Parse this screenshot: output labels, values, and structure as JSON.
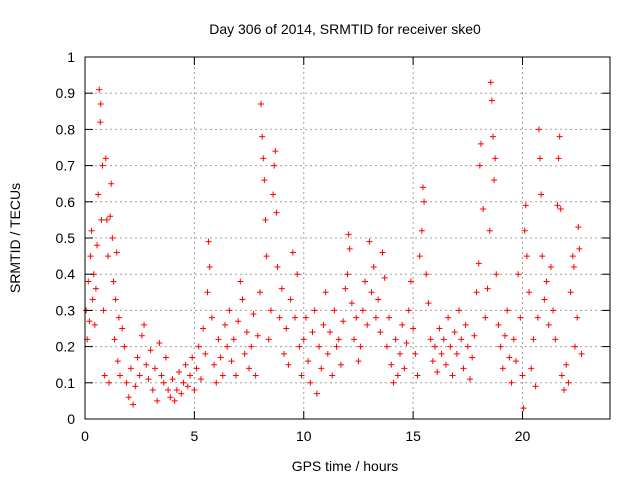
{
  "chart_data": {
    "type": "scatter",
    "title": "Day 306 of 2014, SRMTID for receiver ske0",
    "xlabel": "GPS time / hours",
    "ylabel": "SRMTID / TECUs",
    "xlim": [
      0,
      24
    ],
    "ylim": [
      0,
      1
    ],
    "xticks": [
      0,
      5,
      10,
      15,
      20
    ],
    "xtick_labels": [
      "0",
      "5",
      "10",
      "15",
      "20"
    ],
    "yticks": [
      0,
      0.1,
      0.2,
      0.3,
      0.4,
      0.5,
      0.6,
      0.7,
      0.8,
      0.9,
      1
    ],
    "ytick_labels": [
      "0",
      "0.1",
      "0.2",
      "0.3",
      "0.4",
      "0.5",
      "0.6",
      "0.7",
      "0.8",
      "0.9",
      "1"
    ],
    "grid": true,
    "marker": "+",
    "color": "#ff0000",
    "series": [
      {
        "name": "SRMTID",
        "points": [
          [
            0.05,
            0.3
          ],
          [
            0.1,
            0.22
          ],
          [
            0.15,
            0.38
          ],
          [
            0.2,
            0.27
          ],
          [
            0.25,
            0.45
          ],
          [
            0.3,
            0.52
          ],
          [
            0.35,
            0.33
          ],
          [
            0.4,
            0.4
          ],
          [
            0.45,
            0.26
          ],
          [
            0.5,
            0.36
          ],
          [
            0.55,
            0.48
          ],
          [
            0.6,
            0.62
          ],
          [
            0.65,
            0.91
          ],
          [
            0.7,
            0.82
          ],
          [
            0.72,
            0.87
          ],
          [
            0.75,
            0.55
          ],
          [
            0.8,
            0.7
          ],
          [
            0.85,
            0.3
          ],
          [
            0.9,
            0.12
          ],
          [
            0.95,
            0.72
          ],
          [
            1.0,
            0.55
          ],
          [
            1.05,
            0.45
          ],
          [
            1.1,
            0.1
          ],
          [
            1.15,
            0.56
          ],
          [
            1.2,
            0.65
          ],
          [
            1.25,
            0.5
          ],
          [
            1.3,
            0.38
          ],
          [
            1.35,
            0.22
          ],
          [
            1.4,
            0.33
          ],
          [
            1.45,
            0.46
          ],
          [
            1.5,
            0.16
          ],
          [
            1.55,
            0.28
          ],
          [
            1.6,
            0.12
          ],
          [
            1.7,
            0.25
          ],
          [
            1.8,
            0.2
          ],
          [
            1.9,
            0.1
          ],
          [
            2.0,
            0.06
          ],
          [
            2.1,
            0.14
          ],
          [
            2.2,
            0.04
          ],
          [
            2.3,
            0.09
          ],
          [
            2.4,
            0.17
          ],
          [
            2.5,
            0.12
          ],
          [
            2.6,
            0.23
          ],
          [
            2.7,
            0.26
          ],
          [
            2.8,
            0.15
          ],
          [
            2.9,
            0.11
          ],
          [
            3.0,
            0.19
          ],
          [
            3.1,
            0.08
          ],
          [
            3.2,
            0.14
          ],
          [
            3.3,
            0.05
          ],
          [
            3.4,
            0.21
          ],
          [
            3.5,
            0.12
          ],
          [
            3.6,
            0.1
          ],
          [
            3.7,
            0.17
          ],
          [
            3.8,
            0.08
          ],
          [
            3.9,
            0.06
          ],
          [
            4.0,
            0.11
          ],
          [
            4.1,
            0.05
          ],
          [
            4.2,
            0.08
          ],
          [
            4.3,
            0.13
          ],
          [
            4.4,
            0.07
          ],
          [
            4.5,
            0.1
          ],
          [
            4.6,
            0.15
          ],
          [
            4.7,
            0.09
          ],
          [
            4.8,
            0.12
          ],
          [
            4.9,
            0.17
          ],
          [
            5.0,
            0.08
          ],
          [
            5.1,
            0.14
          ],
          [
            5.2,
            0.2
          ],
          [
            5.3,
            0.11
          ],
          [
            5.4,
            0.25
          ],
          [
            5.5,
            0.18
          ],
          [
            5.6,
            0.35
          ],
          [
            5.65,
            0.49
          ],
          [
            5.7,
            0.42
          ],
          [
            5.8,
            0.28
          ],
          [
            5.9,
            0.15
          ],
          [
            6.0,
            0.1
          ],
          [
            6.1,
            0.22
          ],
          [
            6.2,
            0.17
          ],
          [
            6.3,
            0.12
          ],
          [
            6.4,
            0.26
          ],
          [
            6.5,
            0.2
          ],
          [
            6.6,
            0.3
          ],
          [
            6.7,
            0.16
          ],
          [
            6.8,
            0.22
          ],
          [
            6.9,
            0.12
          ],
          [
            7.0,
            0.27
          ],
          [
            7.1,
            0.38
          ],
          [
            7.2,
            0.33
          ],
          [
            7.3,
            0.18
          ],
          [
            7.4,
            0.24
          ],
          [
            7.5,
            0.14
          ],
          [
            7.6,
            0.2
          ],
          [
            7.7,
            0.29
          ],
          [
            7.8,
            0.12
          ],
          [
            7.9,
            0.23
          ],
          [
            8.0,
            0.35
          ],
          [
            8.05,
            0.87
          ],
          [
            8.1,
            0.78
          ],
          [
            8.15,
            0.72
          ],
          [
            8.2,
            0.66
          ],
          [
            8.25,
            0.55
          ],
          [
            8.3,
            0.45
          ],
          [
            8.4,
            0.22
          ],
          [
            8.5,
            0.3
          ],
          [
            8.6,
            0.62
          ],
          [
            8.65,
            0.7
          ],
          [
            8.7,
            0.74
          ],
          [
            8.75,
            0.57
          ],
          [
            8.8,
            0.42
          ],
          [
            8.9,
            0.28
          ],
          [
            9.0,
            0.36
          ],
          [
            9.1,
            0.18
          ],
          [
            9.2,
            0.25
          ],
          [
            9.3,
            0.15
          ],
          [
            9.4,
            0.33
          ],
          [
            9.5,
            0.46
          ],
          [
            9.6,
            0.28
          ],
          [
            9.7,
            0.4
          ],
          [
            9.8,
            0.2
          ],
          [
            9.9,
            0.12
          ],
          [
            10.0,
            0.22
          ],
          [
            10.1,
            0.28
          ],
          [
            10.2,
            0.16
          ],
          [
            10.3,
            0.1
          ],
          [
            10.4,
            0.24
          ],
          [
            10.5,
            0.3
          ],
          [
            10.6,
            0.07
          ],
          [
            10.7,
            0.2
          ],
          [
            10.8,
            0.14
          ],
          [
            10.9,
            0.26
          ],
          [
            11.0,
            0.35
          ],
          [
            11.1,
            0.18
          ],
          [
            11.2,
            0.24
          ],
          [
            11.3,
            0.12
          ],
          [
            11.4,
            0.3
          ],
          [
            11.5,
            0.2
          ],
          [
            11.6,
            0.22
          ],
          [
            11.7,
            0.15
          ],
          [
            11.8,
            0.27
          ],
          [
            11.9,
            0.36
          ],
          [
            12.0,
            0.4
          ],
          [
            12.05,
            0.51
          ],
          [
            12.1,
            0.47
          ],
          [
            12.2,
            0.32
          ],
          [
            12.3,
            0.22
          ],
          [
            12.4,
            0.28
          ],
          [
            12.5,
            0.16
          ],
          [
            12.6,
            0.2
          ],
          [
            12.7,
            0.3
          ],
          [
            12.8,
            0.38
          ],
          [
            12.9,
            0.26
          ],
          [
            13.0,
            0.49
          ],
          [
            13.1,
            0.35
          ],
          [
            13.2,
            0.42
          ],
          [
            13.3,
            0.28
          ],
          [
            13.4,
            0.33
          ],
          [
            13.5,
            0.24
          ],
          [
            13.6,
            0.46
          ],
          [
            13.7,
            0.39
          ],
          [
            13.8,
            0.2
          ],
          [
            13.9,
            0.28
          ],
          [
            14.0,
            0.15
          ],
          [
            14.1,
            0.1
          ],
          [
            14.2,
            0.22
          ],
          [
            14.3,
            0.12
          ],
          [
            14.4,
            0.18
          ],
          [
            14.5,
            0.26
          ],
          [
            14.6,
            0.14
          ],
          [
            14.7,
            0.21
          ],
          [
            14.8,
            0.3
          ],
          [
            14.9,
            0.38
          ],
          [
            15.0,
            0.25
          ],
          [
            15.1,
            0.18
          ],
          [
            15.2,
            0.12
          ],
          [
            15.3,
            0.45
          ],
          [
            15.4,
            0.52
          ],
          [
            15.45,
            0.64
          ],
          [
            15.5,
            0.6
          ],
          [
            15.6,
            0.4
          ],
          [
            15.7,
            0.32
          ],
          [
            15.8,
            0.22
          ],
          [
            15.9,
            0.16
          ],
          [
            16.0,
            0.2
          ],
          [
            16.1,
            0.13
          ],
          [
            16.2,
            0.25
          ],
          [
            16.3,
            0.18
          ],
          [
            16.4,
            0.22
          ],
          [
            16.5,
            0.15
          ],
          [
            16.6,
            0.28
          ],
          [
            16.7,
            0.2
          ],
          [
            16.8,
            0.12
          ],
          [
            16.9,
            0.24
          ],
          [
            17.0,
            0.18
          ],
          [
            17.1,
            0.3
          ],
          [
            17.2,
            0.22
          ],
          [
            17.3,
            0.14
          ],
          [
            17.4,
            0.26
          ],
          [
            17.5,
            0.2
          ],
          [
            17.6,
            0.11
          ],
          [
            17.7,
            0.17
          ],
          [
            17.8,
            0.23
          ],
          [
            17.9,
            0.35
          ],
          [
            18.0,
            0.43
          ],
          [
            18.05,
            0.7
          ],
          [
            18.1,
            0.76
          ],
          [
            18.2,
            0.58
          ],
          [
            18.3,
            0.28
          ],
          [
            18.4,
            0.36
          ],
          [
            18.5,
            0.52
          ],
          [
            18.55,
            0.93
          ],
          [
            18.6,
            0.88
          ],
          [
            18.65,
            0.78
          ],
          [
            18.7,
            0.66
          ],
          [
            18.75,
            0.72
          ],
          [
            18.8,
            0.4
          ],
          [
            18.9,
            0.26
          ],
          [
            19.0,
            0.2
          ],
          [
            19.1,
            0.14
          ],
          [
            19.2,
            0.23
          ],
          [
            19.3,
            0.3
          ],
          [
            19.4,
            0.17
          ],
          [
            19.5,
            0.1
          ],
          [
            19.6,
            0.22
          ],
          [
            19.7,
            0.16
          ],
          [
            19.8,
            0.4
          ],
          [
            19.9,
            0.28
          ],
          [
            20.0,
            0.12
          ],
          [
            20.05,
            0.03
          ],
          [
            20.1,
            0.52
          ],
          [
            20.15,
            0.59
          ],
          [
            20.2,
            0.45
          ],
          [
            20.3,
            0.35
          ],
          [
            20.4,
            0.14
          ],
          [
            20.5,
            0.22
          ],
          [
            20.6,
            0.09
          ],
          [
            20.7,
            0.28
          ],
          [
            20.75,
            0.8
          ],
          [
            20.8,
            0.72
          ],
          [
            20.85,
            0.62
          ],
          [
            20.9,
            0.45
          ],
          [
            21.0,
            0.33
          ],
          [
            21.1,
            0.38
          ],
          [
            21.2,
            0.26
          ],
          [
            21.3,
            0.42
          ],
          [
            21.4,
            0.3
          ],
          [
            21.5,
            0.22
          ],
          [
            21.6,
            0.59
          ],
          [
            21.65,
            0.72
          ],
          [
            21.7,
            0.78
          ],
          [
            21.75,
            0.58
          ],
          [
            21.8,
            0.12
          ],
          [
            21.9,
            0.08
          ],
          [
            22.0,
            0.15
          ],
          [
            22.1,
            0.1
          ],
          [
            22.2,
            0.35
          ],
          [
            22.3,
            0.45
          ],
          [
            22.35,
            0.42
          ],
          [
            22.4,
            0.2
          ],
          [
            22.5,
            0.28
          ],
          [
            22.55,
            0.53
          ],
          [
            22.6,
            0.47
          ],
          [
            22.7,
            0.18
          ]
        ]
      }
    ]
  }
}
